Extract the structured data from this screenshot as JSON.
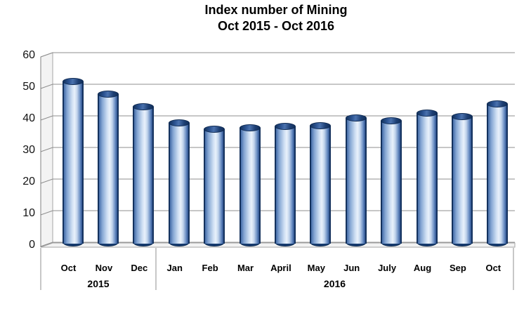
{
  "title": {
    "line1": "Index number of Mining",
    "line2": "Oct 2015 - Oct 2016"
  },
  "chart_data": {
    "type": "bar",
    "style": "3d-cylinder",
    "title": "Index number of Mining Oct 2015 - Oct 2016",
    "categories": [
      "Oct",
      "Nov",
      "Dec",
      "Jan",
      "Feb",
      "Mar",
      "April",
      "May",
      "Jun",
      "July",
      "Aug",
      "Sep",
      "Oct"
    ],
    "values": [
      52,
      48,
      44,
      39,
      37,
      37.4,
      37.7,
      38,
      40.5,
      39.6,
      42,
      41,
      45
    ],
    "year_groups": [
      {
        "label": "2015",
        "start_index": 0,
        "end_index": 2
      },
      {
        "label": "2016",
        "start_index": 3,
        "end_index": 12
      }
    ],
    "xlabel": "",
    "ylabel": "",
    "ylim": [
      0,
      60
    ],
    "yticks": [
      0,
      10,
      20,
      30,
      40,
      50,
      60
    ],
    "grid": true,
    "legend": false,
    "colors": {
      "bar_outline": "#17365d",
      "bar_light": "#e9f1fb",
      "bar_mid": "#6b8fc4",
      "gridline": "#8f8f8f",
      "wall_fill": "#f3f3f3",
      "background": "#ffffff"
    }
  }
}
